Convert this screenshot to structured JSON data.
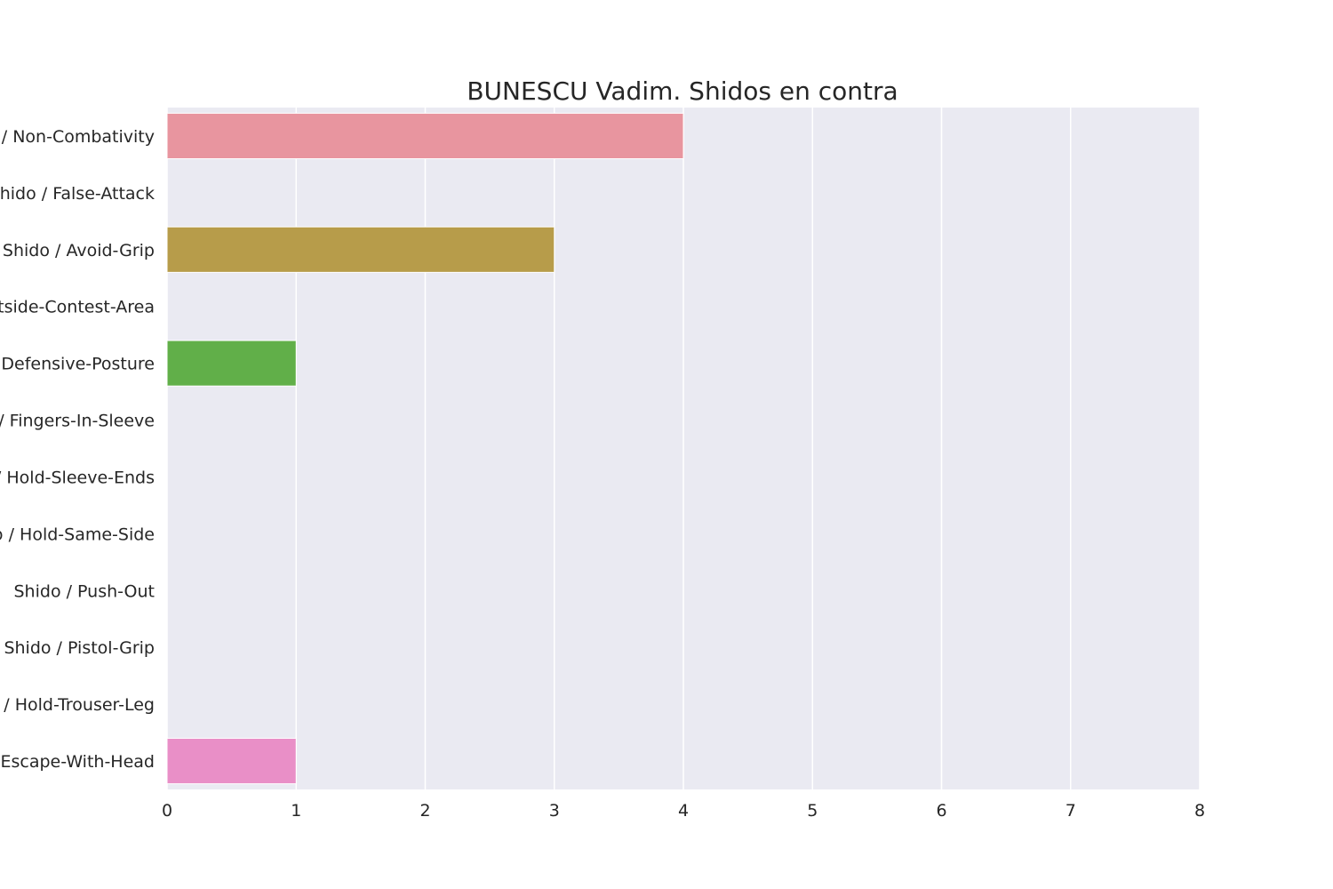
{
  "chart_data": {
    "type": "bar",
    "orientation": "horizontal",
    "title": "BUNESCU Vadim. Shidos en contra",
    "xlabel": "",
    "ylabel": "",
    "xlim": [
      0,
      8
    ],
    "xticks": [
      0,
      1,
      2,
      3,
      4,
      5,
      6,
      7,
      8
    ],
    "grid": true,
    "categories": [
      "Shido / Non-Combativity",
      "Shido / False-Attack",
      "Shido / Avoid-Grip",
      "Shido / Outside-Contest-Area",
      "Shido / Defensive-Posture",
      "Shido / Fingers-In-Sleeve",
      "Shido / Hold-Sleeve-Ends",
      "Shido / Hold-Same-Side",
      "Shido / Push-Out",
      "Shido / Pistol-Grip",
      "Shido / Hold-Trouser-Leg",
      "Shido / Escape-With-Head"
    ],
    "values": [
      4,
      0,
      3,
      0,
      1,
      0,
      0,
      0,
      0,
      0,
      0,
      1
    ],
    "colors": [
      "#e8959f",
      "#e19f6a",
      "#b79c4a",
      "#9bb04c",
      "#61af49",
      "#5ab58b",
      "#5bb3a9",
      "#5bb1c3",
      "#6aa9dc",
      "#a99ae4",
      "#d98ce3",
      "#e98fc7"
    ],
    "plot_background": "#eaeaf2",
    "grid_color": "#ffffff"
  }
}
